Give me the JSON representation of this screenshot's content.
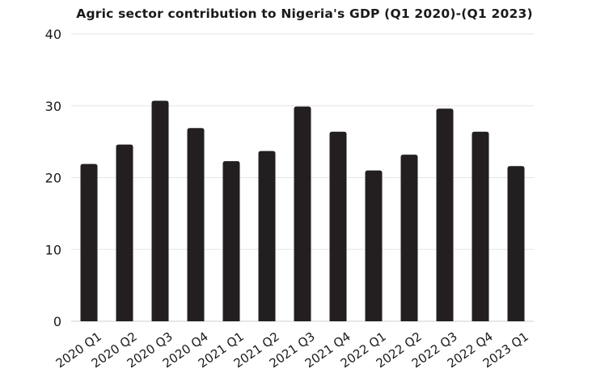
{
  "chart_data": {
    "type": "bar",
    "title": "Agric sector contribution to Nigeria's GDP (Q1 2020)-(Q1 2023)",
    "xlabel": "",
    "ylabel": "",
    "categories": [
      "2020 Q1",
      "2020 Q2",
      "2020 Q3",
      "2020 Q4",
      "2021 Q1",
      "2021 Q2",
      "2021 Q3",
      "2021 Q4",
      "2022 Q1",
      "2022 Q2",
      "2022 Q3",
      "2022 Q4",
      "2023 Q1"
    ],
    "values": [
      21.9,
      24.6,
      30.7,
      26.9,
      22.3,
      23.7,
      29.9,
      26.4,
      21.0,
      23.2,
      29.6,
      26.4,
      21.6
    ],
    "ylim": [
      0,
      40
    ],
    "yticks": [
      0,
      10,
      20,
      30,
      40
    ],
    "grid": true,
    "legend": "none",
    "colors": {
      "bar": "#231f20",
      "grid": "#e6e6e6",
      "text": "#1a1a1a"
    }
  }
}
